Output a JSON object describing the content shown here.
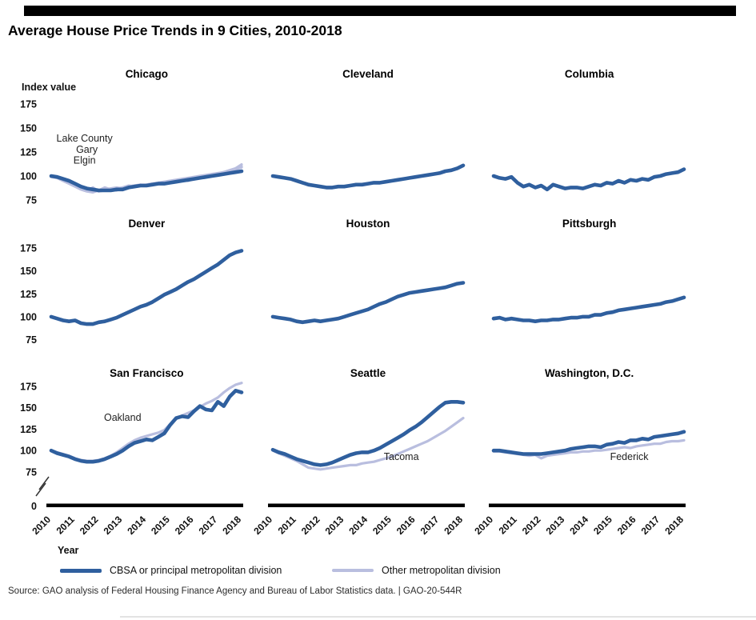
{
  "header": {
    "title": "Average House Price Trends in 9 Cities, 2010-2018"
  },
  "axis": {
    "index_label": "Index value",
    "year_label": "Year",
    "yticks": [
      175,
      150,
      125,
      100,
      75
    ],
    "zero_label": "0",
    "years": [
      "2010",
      "2011",
      "2012",
      "2013",
      "2014",
      "2015",
      "2016",
      "2017",
      "2018"
    ]
  },
  "legend": {
    "items": [
      {
        "label": "CBSA or principal metropolitan division",
        "color": "#2f5f9e"
      },
      {
        "label": "Other metropolitan division",
        "color": "#b9bedf"
      }
    ]
  },
  "source": "Source: GAO analysis of Federal Housing Finance Agency and Bureau of Labor Statistics data.  |  GAO-20-544R",
  "colors": {
    "primary": "#2f5f9e",
    "other": "#b9bedf"
  },
  "chart_data": [
    {
      "type": "line",
      "title": "Chicago",
      "x": {
        "start": 2010,
        "end": 2018,
        "points": 33,
        "spacing": "even (quarterly)"
      },
      "ylabel": "Index value",
      "ylim_labeled": [
        75,
        175
      ],
      "series": [
        {
          "name": "Chicago CBSA",
          "role": "primary",
          "values": [
            100,
            99,
            97,
            95,
            92,
            89,
            87,
            86,
            85,
            85,
            85,
            86,
            86,
            88,
            89,
            90,
            90,
            91,
            92,
            92,
            93,
            94,
            95,
            96,
            97,
            98,
            99,
            100,
            101,
            102,
            103,
            104,
            105
          ]
        },
        {
          "name": "Lake County",
          "role": "other",
          "values": [
            100,
            98,
            96,
            93,
            90,
            87,
            85,
            88,
            84,
            86,
            87,
            88,
            87,
            89,
            90,
            90,
            91,
            92,
            92,
            93,
            94,
            95,
            96,
            97,
            98,
            99,
            100,
            101,
            102,
            104,
            106,
            108,
            112
          ]
        },
        {
          "name": "Gary",
          "role": "other",
          "values": [
            99,
            98,
            95,
            92,
            89,
            86,
            84,
            83,
            85,
            88,
            86,
            85,
            88,
            90,
            89,
            91,
            90,
            92,
            93,
            92,
            94,
            95,
            96,
            95,
            97,
            98,
            99,
            100,
            102,
            103,
            105,
            107,
            110
          ]
        },
        {
          "name": "Elgin",
          "role": "other",
          "values": [
            100,
            99,
            96,
            94,
            91,
            88,
            86,
            85,
            84,
            85,
            86,
            87,
            88,
            89,
            90,
            91,
            91,
            92,
            93,
            94,
            95,
            96,
            97,
            98,
            99,
            100,
            101,
            102,
            103,
            104,
            105,
            107,
            109
          ]
        }
      ],
      "annotations": [
        {
          "text": "Lake County",
          "year": 2011.4,
          "value": 136
        },
        {
          "text": "Gary",
          "year": 2011.5,
          "value": 124
        },
        {
          "text": "Elgin",
          "year": 2011.4,
          "value": 113
        }
      ]
    },
    {
      "type": "line",
      "title": "Cleveland",
      "x": {
        "start": 2010,
        "end": 2018,
        "points": 33,
        "spacing": "even (quarterly)"
      },
      "ylabel": "Index value",
      "ylim_labeled": [
        75,
        175
      ],
      "series": [
        {
          "name": "Cleveland CBSA",
          "role": "primary",
          "values": [
            100,
            99,
            98,
            97,
            95,
            93,
            91,
            90,
            89,
            88,
            88,
            89,
            89,
            90,
            91,
            91,
            92,
            93,
            93,
            94,
            95,
            96,
            97,
            98,
            99,
            100,
            101,
            102,
            103,
            105,
            106,
            108,
            111
          ]
        }
      ],
      "annotations": []
    },
    {
      "type": "line",
      "title": "Columbia",
      "x": {
        "start": 2010,
        "end": 2018,
        "points": 33,
        "spacing": "even (quarterly)"
      },
      "ylabel": "Index value",
      "ylim_labeled": [
        75,
        175
      ],
      "series": [
        {
          "name": "Columbia CBSA",
          "role": "primary",
          "values": [
            100,
            98,
            97,
            99,
            93,
            89,
            91,
            88,
            90,
            86,
            91,
            89,
            87,
            88,
            88,
            87,
            89,
            91,
            90,
            93,
            92,
            95,
            93,
            96,
            95,
            97,
            96,
            99,
            100,
            102,
            103,
            104,
            107
          ]
        }
      ],
      "annotations": []
    },
    {
      "type": "line",
      "title": "Denver",
      "x": {
        "start": 2010,
        "end": 2018,
        "points": 33,
        "spacing": "even (quarterly)"
      },
      "ylabel": "Index value",
      "ylim_labeled": [
        75,
        175
      ],
      "series": [
        {
          "name": "Denver CBSA",
          "role": "primary",
          "values": [
            100,
            98,
            96,
            95,
            96,
            93,
            92,
            92,
            94,
            95,
            97,
            99,
            102,
            105,
            108,
            111,
            113,
            116,
            120,
            124,
            127,
            130,
            134,
            138,
            141,
            145,
            149,
            153,
            157,
            162,
            167,
            170,
            172
          ]
        }
      ],
      "annotations": []
    },
    {
      "type": "line",
      "title": "Houston",
      "x": {
        "start": 2010,
        "end": 2018,
        "points": 33,
        "spacing": "even (quarterly)"
      },
      "ylabel": "Index value",
      "ylim_labeled": [
        75,
        175
      ],
      "series": [
        {
          "name": "Houston CBSA",
          "role": "primary",
          "values": [
            100,
            99,
            98,
            97,
            95,
            94,
            95,
            96,
            95,
            96,
            97,
            98,
            100,
            102,
            104,
            106,
            108,
            111,
            114,
            116,
            119,
            122,
            124,
            126,
            127,
            128,
            129,
            130,
            131,
            132,
            134,
            136,
            137
          ]
        }
      ],
      "annotations": []
    },
    {
      "type": "line",
      "title": "Pittsburgh",
      "x": {
        "start": 2010,
        "end": 2018,
        "points": 33,
        "spacing": "even (quarterly)"
      },
      "ylabel": "Index value",
      "ylim_labeled": [
        75,
        175
      ],
      "series": [
        {
          "name": "Pittsburgh CBSA",
          "role": "primary",
          "values": [
            98,
            99,
            97,
            98,
            97,
            96,
            96,
            95,
            96,
            96,
            97,
            97,
            98,
            99,
            99,
            100,
            100,
            102,
            102,
            104,
            105,
            107,
            108,
            109,
            110,
            111,
            112,
            113,
            114,
            116,
            117,
            119,
            121
          ]
        }
      ],
      "annotations": []
    },
    {
      "type": "line",
      "title": "San Francisco",
      "x": {
        "start": 2010,
        "end": 2018,
        "points": 33,
        "spacing": "even (quarterly)"
      },
      "ylabel": "Index value",
      "ylim_labeled": [
        75,
        175
      ],
      "axis_break_to_zero": true,
      "series": [
        {
          "name": "San Francisco CBSA",
          "role": "primary",
          "values": [
            100,
            97,
            95,
            93,
            90,
            88,
            87,
            87,
            88,
            90,
            93,
            96,
            100,
            105,
            109,
            111,
            113,
            112,
            116,
            120,
            130,
            138,
            140,
            139,
            146,
            152,
            148,
            147,
            157,
            152,
            163,
            170,
            168
          ]
        },
        {
          "name": "Oakland",
          "role": "other",
          "values": [
            100,
            98,
            96,
            94,
            91,
            89,
            88,
            88,
            89,
            91,
            94,
            98,
            103,
            108,
            112,
            115,
            117,
            119,
            121,
            124,
            131,
            137,
            141,
            144,
            147,
            151,
            155,
            158,
            162,
            168,
            173,
            177,
            179
          ]
        }
      ],
      "annotations": [
        {
          "text": "Oakland",
          "year": 2013.0,
          "value": 135
        }
      ]
    },
    {
      "type": "line",
      "title": "Seattle",
      "x": {
        "start": 2010,
        "end": 2018,
        "points": 33,
        "spacing": "even (quarterly)"
      },
      "ylabel": "Index value",
      "ylim_labeled": [
        75,
        175
      ],
      "axis_break_to_zero": true,
      "series": [
        {
          "name": "Seattle CBSA",
          "role": "primary",
          "values": [
            101,
            98,
            96,
            93,
            90,
            88,
            86,
            84,
            83,
            84,
            86,
            89,
            92,
            95,
            97,
            98,
            98,
            100,
            103,
            107,
            111,
            115,
            119,
            124,
            128,
            133,
            139,
            145,
            151,
            156,
            157,
            157,
            156
          ]
        },
        {
          "name": "Tacoma",
          "role": "other",
          "values": [
            100,
            97,
            94,
            91,
            88,
            84,
            80,
            79,
            78,
            79,
            80,
            81,
            82,
            83,
            83,
            85,
            86,
            87,
            89,
            91,
            93,
            96,
            99,
            102,
            105,
            108,
            111,
            115,
            119,
            123,
            128,
            133,
            138
          ]
        }
      ],
      "annotations": [
        {
          "text": "Tacoma",
          "year": 2015.4,
          "value": 89
        }
      ]
    },
    {
      "type": "line",
      "title": "Washington, D.C.",
      "x": {
        "start": 2010,
        "end": 2018,
        "points": 33,
        "spacing": "even (quarterly)"
      },
      "ylabel": "Index value",
      "ylim_labeled": [
        75,
        175
      ],
      "axis_break_to_zero": true,
      "series": [
        {
          "name": "Washington D.C. CBSA",
          "role": "primary",
          "values": [
            100,
            100,
            99,
            98,
            97,
            96,
            96,
            96,
            96,
            97,
            98,
            99,
            100,
            102,
            103,
            104,
            105,
            105,
            104,
            107,
            108,
            110,
            109,
            112,
            112,
            114,
            113,
            116,
            117,
            118,
            119,
            120,
            122
          ]
        },
        {
          "name": "Federick",
          "role": "other",
          "values": [
            99,
            99,
            98,
            97,
            96,
            95,
            94,
            95,
            91,
            94,
            95,
            96,
            97,
            98,
            98,
            99,
            99,
            100,
            100,
            101,
            102,
            103,
            104,
            103,
            105,
            106,
            107,
            108,
            108,
            110,
            111,
            111,
            112
          ]
        }
      ],
      "annotations": [
        {
          "text": "Federick",
          "year": 2015.7,
          "value": 89
        }
      ]
    }
  ]
}
